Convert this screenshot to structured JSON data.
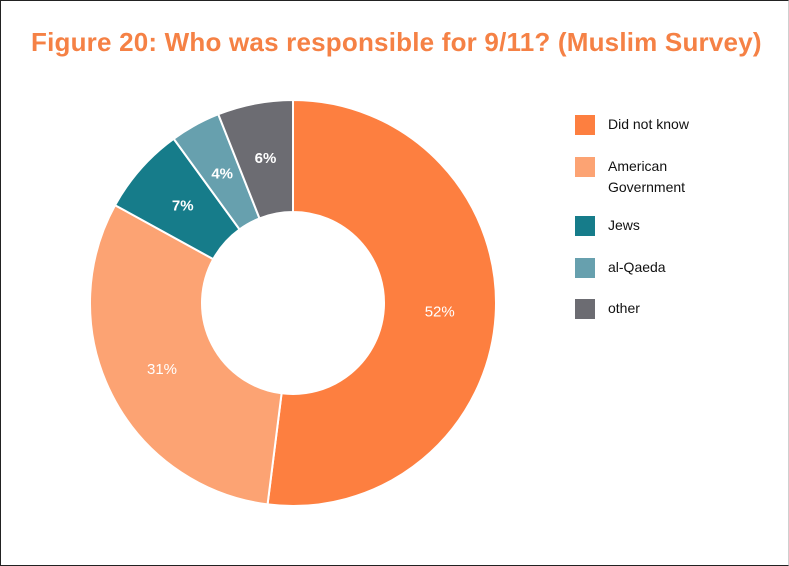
{
  "title": "Figure 20: Who was responsible for 9/11? (Muslim Survey)",
  "chart_data": {
    "type": "pie",
    "donut": true,
    "title": "Figure 20: Who was responsible for 9/11? (Muslim Survey)",
    "categories": [
      "Did not know",
      "American Government",
      "Jews",
      "al-Qaeda",
      "other"
    ],
    "values": [
      52,
      31,
      7,
      4,
      6
    ],
    "data_labels": [
      "52%",
      "31%",
      "7%",
      "4%",
      "6%"
    ],
    "colors": [
      "#fd7f40",
      "#fca373",
      "#167c8a",
      "#67a0ae",
      "#6c6c72"
    ],
    "legend": "right",
    "start": "12 o'clock",
    "direction": "clockwise"
  },
  "legend": [
    {
      "label": "Did not know",
      "color": "#fd7f40"
    },
    {
      "label": "American Government",
      "color": "#fca373"
    },
    {
      "label": "Jews",
      "color": "#167c8a"
    },
    {
      "label": "al-Qaeda",
      "color": "#67a0ae"
    },
    {
      "label": "other",
      "color": "#6c6c72"
    }
  ]
}
